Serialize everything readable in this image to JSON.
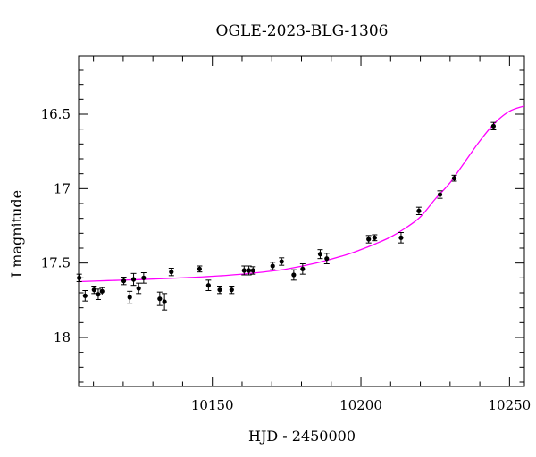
{
  "chart_data": {
    "type": "scatter",
    "title": "OGLE-2023-BLG-1306",
    "xlabel": "HJD - 2450000",
    "ylabel": "I magnitude",
    "xlim": [
      10105,
      10255
    ],
    "ylim": [
      18.33,
      16.11
    ],
    "y_inverted": true,
    "x_major_ticks": [
      10150,
      10200,
      10250
    ],
    "x_tick_labels": [
      "10150",
      "10200",
      "10250"
    ],
    "x_minor_step": 10,
    "y_major_ticks": [
      16.5,
      17,
      17.5,
      18
    ],
    "y_tick_labels": [
      "16.5",
      "17",
      "17.5",
      "18"
    ],
    "y_minor_step": 0.1,
    "grid": false,
    "ticks_inside_all_sides": true,
    "colors": {
      "data": "#000000",
      "model": "#ff00ff"
    },
    "series": [
      {
        "kind": "points_with_errorbars",
        "x": [
          10105.2,
          10107.2,
          10110.2,
          10111.6,
          10112.9,
          10120.2,
          10122.2,
          10123.5,
          10125.2,
          10126.9,
          10132.3,
          10133.9,
          10136.2,
          10145.7,
          10148.7,
          10152.5,
          10156.5,
          10160.7,
          10162.3,
          10163.7,
          10170.3,
          10173.3,
          10177.4,
          10180.4,
          10186.3,
          10188.5,
          10202.6,
          10204.6,
          10213.5,
          10219.5,
          10226.6,
          10231.4,
          10244.6
        ],
        "y": [
          17.6,
          17.72,
          17.68,
          17.71,
          17.69,
          17.62,
          17.73,
          17.61,
          17.67,
          17.6,
          17.74,
          17.76,
          17.56,
          17.54,
          17.65,
          17.68,
          17.68,
          17.55,
          17.55,
          17.55,
          17.52,
          17.49,
          17.58,
          17.54,
          17.44,
          17.47,
          17.34,
          17.33,
          17.33,
          17.15,
          17.04,
          16.93,
          16.58
        ],
        "yerr": [
          0.025,
          0.035,
          0.025,
          0.035,
          0.025,
          0.025,
          0.04,
          0.04,
          0.035,
          0.035,
          0.045,
          0.055,
          0.025,
          0.02,
          0.035,
          0.025,
          0.025,
          0.03,
          0.03,
          0.025,
          0.025,
          0.025,
          0.035,
          0.035,
          0.03,
          0.035,
          0.025,
          0.02,
          0.035,
          0.025,
          0.025,
          0.02,
          0.025
        ]
      },
      {
        "kind": "model_curve",
        "x": [
          10105,
          10115,
          10125,
          10135,
          10145,
          10155,
          10165,
          10175,
          10185,
          10195,
          10200,
          10205,
          10210,
          10215,
          10220,
          10225,
          10230,
          10235,
          10240,
          10245,
          10250,
          10255
        ],
        "y": [
          17.625,
          17.618,
          17.612,
          17.604,
          17.595,
          17.583,
          17.565,
          17.54,
          17.5,
          17.445,
          17.41,
          17.37,
          17.325,
          17.265,
          17.19,
          17.07,
          16.96,
          16.82,
          16.68,
          16.56,
          16.48,
          16.445
        ]
      }
    ]
  }
}
